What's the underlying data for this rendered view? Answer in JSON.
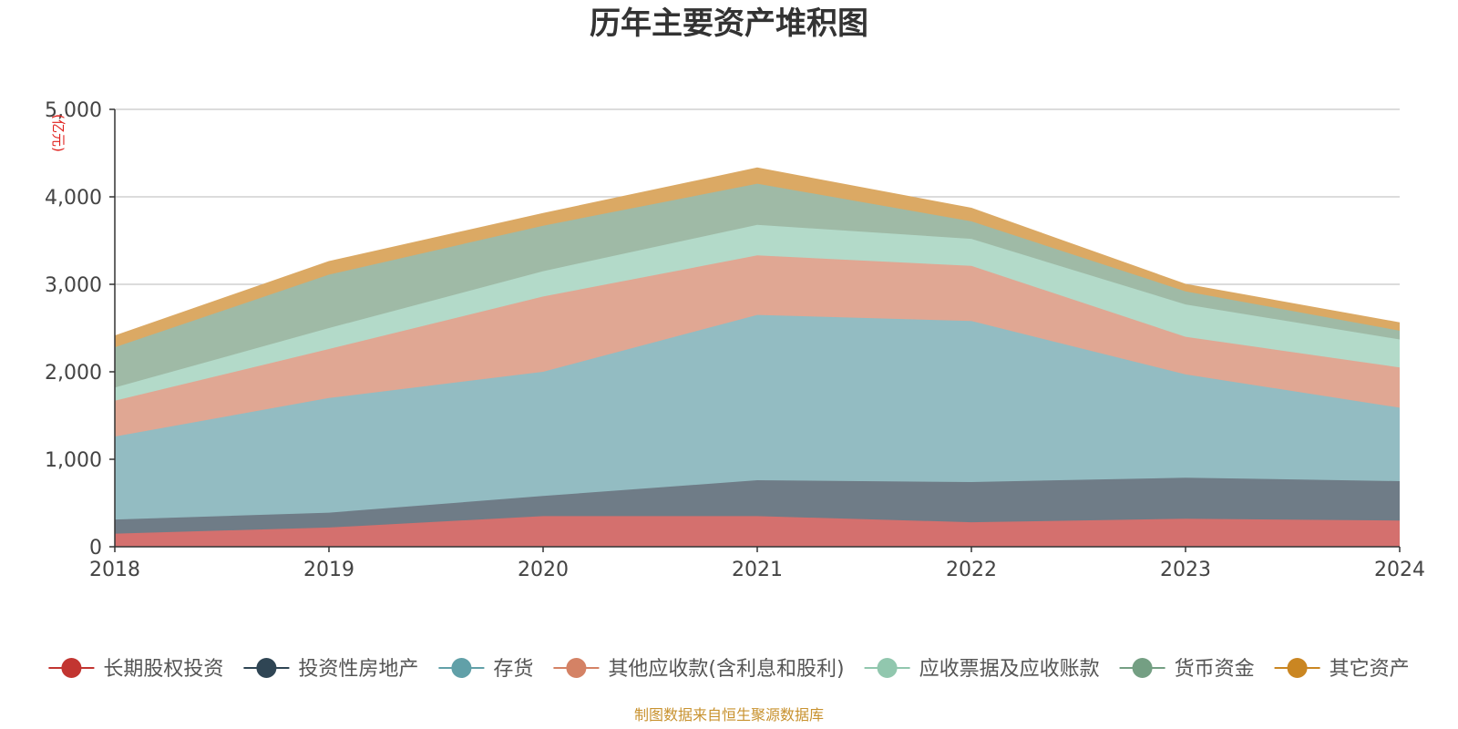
{
  "chart_data": {
    "type": "area",
    "stacked": true,
    "title": "历年主要资产堆积图",
    "unit_label": "(亿元)",
    "source_note": "制图数据来自恒生聚源数据库",
    "x": [
      "2018",
      "2019",
      "2020",
      "2021",
      "2022",
      "2023",
      "2024"
    ],
    "ylim": [
      0,
      5000
    ],
    "yticks": [
      0,
      1000,
      2000,
      3000,
      4000,
      5000
    ],
    "ytick_labels": [
      "0",
      "1,000",
      "2,000",
      "3,000",
      "4,000",
      "5,000"
    ],
    "grid": true,
    "legend_position": "bottom",
    "series": [
      {
        "name": "长期股权投资",
        "color": "#d4706e",
        "marker_color": "#c23531",
        "values": [
          150,
          220,
          350,
          350,
          280,
          320,
          300
        ]
      },
      {
        "name": "投资性房地产",
        "color": "#6f7c87",
        "marker_color": "#2f4554",
        "values": [
          160,
          170,
          230,
          410,
          460,
          470,
          450
        ]
      },
      {
        "name": "存货",
        "color": "#93bcc2",
        "marker_color": "#61a0a8",
        "values": [
          950,
          1310,
          1420,
          1890,
          1840,
          1180,
          840
        ]
      },
      {
        "name": "其他应收款(含利息和股利)",
        "color": "#e0a793",
        "marker_color": "#d48265",
        "values": [
          410,
          560,
          860,
          680,
          630,
          430,
          460
        ]
      },
      {
        "name": "应收票据及应收账款",
        "color": "#b3dac9",
        "marker_color": "#91c7ae",
        "values": [
          150,
          240,
          290,
          350,
          310,
          370,
          320
        ]
      },
      {
        "name": "货币资金",
        "color": "#9fbaa6",
        "marker_color": "#749f83",
        "values": [
          460,
          610,
          520,
          470,
          200,
          150,
          100
        ]
      },
      {
        "name": "其它资产",
        "color": "#dba964",
        "marker_color": "#ca8622",
        "values": [
          130,
          150,
          140,
          180,
          150,
          80,
          90
        ]
      }
    ]
  }
}
